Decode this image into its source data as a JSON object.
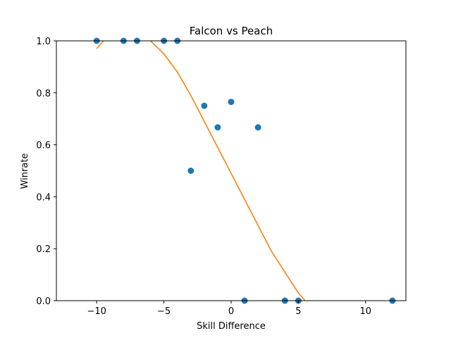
{
  "chart_data": {
    "type": "scatter",
    "title": "Falcon vs Peach",
    "xlabel": "Skill Difference",
    "ylabel": "Winrate",
    "xlim": [
      -13,
      13
    ],
    "ylim": [
      0,
      1
    ],
    "x_ticks": [
      -10,
      -5,
      0,
      5,
      10
    ],
    "y_ticks": [
      0,
      0.2,
      0.4,
      0.6,
      0.8,
      1
    ],
    "x_tick_labels": [
      "−10",
      "−5",
      "0",
      "5",
      "10"
    ],
    "y_tick_labels": [
      "0.0",
      "0.2",
      "0.4",
      "0.6",
      "0.8",
      "1.0"
    ],
    "grid": false,
    "series": [
      {
        "type": "scatter",
        "color": "#1f77b4",
        "points": [
          {
            "x": -10,
            "y": 1.0
          },
          {
            "x": -8,
            "y": 1.0
          },
          {
            "x": -7,
            "y": 1.0
          },
          {
            "x": -5,
            "y": 1.0
          },
          {
            "x": -4,
            "y": 1.0
          },
          {
            "x": -3,
            "y": 0.5
          },
          {
            "x": -2,
            "y": 0.75
          },
          {
            "x": -1,
            "y": 0.667
          },
          {
            "x": 0,
            "y": 0.765
          },
          {
            "x": 1,
            "y": 0.0
          },
          {
            "x": 2,
            "y": 0.667
          },
          {
            "x": 4,
            "y": 0.0
          },
          {
            "x": 5,
            "y": 0.0
          },
          {
            "x": 12,
            "y": 0.0
          }
        ]
      },
      {
        "type": "line",
        "color": "#ff7f0e",
        "points": [
          {
            "x": -10,
            "y": 0.97
          },
          {
            "x": -9.5,
            "y": 1.0
          },
          {
            "x": -9,
            "y": 1.03
          },
          {
            "x": -8.5,
            "y": 1.05
          },
          {
            "x": -8,
            "y": 1.06
          },
          {
            "x": -7.5,
            "y": 1.06
          },
          {
            "x": -7,
            "y": 1.05
          },
          {
            "x": -6.5,
            "y": 1.03
          },
          {
            "x": -6,
            "y": 1.0
          },
          {
            "x": -5,
            "y": 0.95
          },
          {
            "x": -4,
            "y": 0.88
          },
          {
            "x": -3,
            "y": 0.79
          },
          {
            "x": -2,
            "y": 0.69
          },
          {
            "x": -1,
            "y": 0.59
          },
          {
            "x": 0,
            "y": 0.49
          },
          {
            "x": 1,
            "y": 0.39
          },
          {
            "x": 2,
            "y": 0.29
          },
          {
            "x": 3,
            "y": 0.19
          },
          {
            "x": 4,
            "y": 0.11
          },
          {
            "x": 5,
            "y": 0.03
          },
          {
            "x": 5.5,
            "y": 0.0
          },
          {
            "x": 6,
            "y": -0.03
          }
        ]
      }
    ]
  }
}
